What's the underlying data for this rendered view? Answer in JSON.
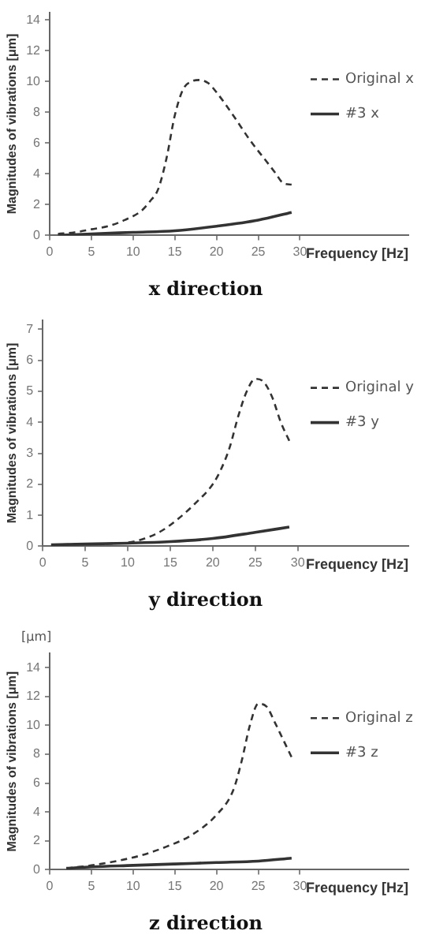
{
  "chart_data": [
    {
      "type": "line",
      "title": "x direction",
      "xlabel": "Frequency [Hz]",
      "ylabel": "Magnitudes of vibrations [μm]",
      "xlim": [
        0,
        43
      ],
      "xticks": [
        0,
        5,
        10,
        15,
        20,
        25,
        30
      ],
      "ylim": [
        0,
        14.5
      ],
      "yticks": [
        0,
        2,
        4,
        6,
        8,
        10,
        12,
        14
      ],
      "grid": false,
      "legend": "right",
      "marker": "none",
      "series": [
        {
          "name": "Original x",
          "color": "#333333",
          "line_style": "dashed",
          "x": [
            1,
            3,
            5,
            7,
            9,
            11,
            12,
            13,
            14,
            15,
            16,
            17,
            18,
            19,
            20,
            22,
            24,
            26,
            27,
            28,
            29
          ],
          "values": [
            0.1,
            0.2,
            0.4,
            0.6,
            1.0,
            1.6,
            2.2,
            3.0,
            5.0,
            7.8,
            9.5,
            10.0,
            10.1,
            9.9,
            9.3,
            7.8,
            6.2,
            4.8,
            4.1,
            3.4,
            3.3
          ]
        },
        {
          "name": "#3 x",
          "color": "#333333",
          "line_style": "solid",
          "x": [
            1,
            5,
            10,
            15,
            20,
            25,
            29
          ],
          "values": [
            0,
            0.1,
            0.2,
            0.3,
            0.6,
            1.0,
            1.5
          ]
        }
      ]
    },
    {
      "type": "line",
      "title": "y direction",
      "xlabel": "Frequency [Hz]",
      "ylabel": "Magnitudes of vibrations [μm]",
      "xlim": [
        0,
        43
      ],
      "xticks": [
        0,
        5,
        10,
        15,
        20,
        25,
        30
      ],
      "ylim": [
        0,
        7.3
      ],
      "yticks": [
        0,
        1,
        2,
        3,
        4,
        5,
        6,
        7
      ],
      "grid": false,
      "legend": "right",
      "marker": "none",
      "series": [
        {
          "name": "Original y",
          "color": "#333333",
          "line_style": "dashed",
          "x": [
            1,
            5,
            10,
            12,
            14,
            16,
            18,
            20,
            21,
            22,
            23,
            24,
            25,
            26,
            27,
            28,
            29
          ],
          "values": [
            0.05,
            0.07,
            0.12,
            0.25,
            0.5,
            0.9,
            1.4,
            2.0,
            2.5,
            3.2,
            4.2,
            5.0,
            5.4,
            5.3,
            4.8,
            4.0,
            3.4
          ]
        },
        {
          "name": "#3 y",
          "color": "#333333",
          "line_style": "solid",
          "x": [
            1,
            5,
            10,
            15,
            20,
            25,
            29
          ],
          "values": [
            0.05,
            0.07,
            0.1,
            0.15,
            0.25,
            0.45,
            0.62
          ]
        }
      ]
    },
    {
      "type": "line",
      "title": "z direction",
      "xlabel": "Frequency [Hz]",
      "ylabel": "Magnitudes of vibrations [μm]",
      "annotations": [
        "[μm]"
      ],
      "xlim": [
        0,
        43
      ],
      "xticks": [
        0,
        5,
        10,
        15,
        20,
        25,
        30
      ],
      "ylim": [
        0,
        15
      ],
      "yticks": [
        0,
        2,
        4,
        6,
        8,
        10,
        12,
        14
      ],
      "grid": false,
      "legend": "right",
      "marker": "none",
      "series": [
        {
          "name": "Original z",
          "color": "#333333",
          "line_style": "dashed",
          "x": [
            2,
            5,
            8,
            11,
            14,
            17,
            20,
            22,
            23,
            24,
            25,
            26,
            27,
            28,
            29
          ],
          "values": [
            0.1,
            0.3,
            0.6,
            1.0,
            1.6,
            2.4,
            3.8,
            5.5,
            7.5,
            10.0,
            11.5,
            11.3,
            10.2,
            9.0,
            7.8
          ]
        },
        {
          "name": "#3 z",
          "color": "#333333",
          "line_style": "solid",
          "x": [
            2,
            5,
            10,
            15,
            20,
            25,
            29
          ],
          "values": [
            0.1,
            0.2,
            0.3,
            0.4,
            0.5,
            0.6,
            0.8
          ]
        }
      ]
    }
  ]
}
